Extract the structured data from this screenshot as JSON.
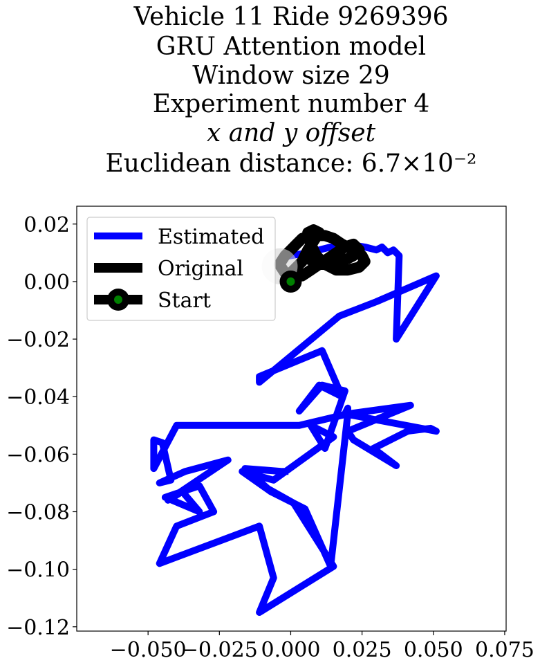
{
  "chart_data": {
    "type": "line",
    "title_lines": [
      "Vehicle 11 Ride 9269396",
      "GRU Attention model",
      "Window size 29",
      "Experiment number 4",
      "x and y offset",
      "Euclidean distance: 6.7×10⁻²"
    ],
    "xlim": [
      -0.075,
      0.0755
    ],
    "ylim": [
      -0.1215,
      0.0262
    ],
    "x_ticks": [
      -0.05,
      -0.025,
      0.0,
      0.025,
      0.05,
      0.075
    ],
    "x_tick_labels": [
      "−0.050",
      "−0.025",
      "0.000",
      "0.025",
      "0.050",
      "0.075"
    ],
    "y_ticks": [
      0.02,
      0.0,
      -0.02,
      -0.04,
      -0.06,
      -0.08,
      -0.1,
      -0.12
    ],
    "y_tick_labels": [
      "0.02",
      "0.00",
      "−0.02",
      "−0.04",
      "−0.06",
      "−0.08",
      "−0.10",
      "−0.12"
    ],
    "legend": {
      "position": "top-left",
      "entries": [
        "Estimated",
        "Original",
        "Start"
      ]
    },
    "colors": {
      "estimated": "#0000ff",
      "original": "#000000",
      "start_marker": "#008000",
      "start_shadow": "#d3d3d3"
    },
    "start": {
      "x": 0.0,
      "y": 0.0
    },
    "series": [
      {
        "name": "Estimated",
        "x": [
          0.0,
          0.006,
          0.014,
          0.02,
          0.026,
          0.03,
          0.032,
          0.034,
          0.036,
          0.038,
          0.037,
          0.051,
          0.03,
          0.017,
          -0.011,
          -0.011,
          0.011,
          0.018,
          0.01,
          0.003,
          0.011,
          0.019,
          0.012,
          0.007,
          0.015,
          -0.006,
          -0.017,
          -0.007,
          0.005,
          0.014,
          0.02,
          0.042,
          0.02,
          0.022,
          0.037,
          0.029,
          0.041,
          0.049,
          0.051,
          0.019,
          0.02,
          0.02,
          0.003,
          -0.04,
          -0.048,
          -0.048,
          -0.045,
          -0.042,
          -0.046,
          -0.037,
          -0.022,
          -0.043,
          -0.038,
          -0.032,
          -0.044,
          -0.032,
          -0.027,
          -0.04,
          -0.046,
          -0.011,
          -0.006,
          -0.011,
          0.015,
          0.001,
          -0.008,
          -0.016,
          -0.003,
          -0.002
        ],
        "y": [
          0.009,
          0.01,
          0.012,
          0.013,
          0.012,
          0.011,
          0.012,
          0.01,
          0.011,
          0.009,
          -0.02,
          0.002,
          -0.007,
          -0.012,
          -0.035,
          -0.033,
          -0.024,
          -0.04,
          -0.036,
          -0.045,
          -0.036,
          -0.038,
          -0.058,
          -0.05,
          -0.054,
          -0.069,
          -0.066,
          -0.073,
          -0.079,
          -0.099,
          -0.046,
          -0.043,
          -0.052,
          -0.055,
          -0.064,
          -0.058,
          -0.052,
          -0.051,
          -0.052,
          -0.046,
          -0.044,
          -0.046,
          -0.05,
          -0.05,
          -0.065,
          -0.055,
          -0.056,
          -0.069,
          -0.07,
          -0.066,
          -0.062,
          -0.076,
          -0.073,
          -0.08,
          -0.075,
          -0.071,
          -0.08,
          -0.085,
          -0.098,
          -0.085,
          -0.103,
          -0.115,
          -0.099,
          -0.077,
          -0.072,
          -0.065,
          -0.066,
          -0.066
        ]
      },
      {
        "name": "Original",
        "x": [
          0.0,
          0.004,
          0.006,
          0.008,
          0.01,
          0.008,
          0.006,
          0.007,
          0.009,
          0.012,
          0.016,
          0.02,
          0.024,
          0.026,
          0.025,
          0.022,
          0.018,
          0.015,
          0.012,
          0.009,
          0.007,
          0.004,
          0.002,
          0.0,
          -0.002,
          -0.004,
          -0.002,
          0.001,
          0.004,
          0.007,
          0.01,
          0.013,
          0.016,
          0.019,
          0.022,
          0.024,
          0.022,
          0.02,
          0.017,
          0.014,
          0.011,
          0.008,
          0.006,
          0.005
        ],
        "y": [
          0.003,
          0.007,
          0.011,
          0.014,
          0.017,
          0.018,
          0.017,
          0.013,
          0.009,
          0.006,
          0.004,
          0.004,
          0.005,
          0.007,
          0.009,
          0.011,
          0.013,
          0.015,
          0.016,
          0.016,
          0.016,
          0.015,
          0.013,
          0.011,
          0.009,
          0.006,
          0.003,
          0.002,
          0.002,
          0.004,
          0.006,
          0.008,
          0.01,
          0.012,
          0.013,
          0.011,
          0.009,
          0.008,
          0.007,
          0.006,
          0.006,
          0.007,
          0.008,
          0.009
        ]
      }
    ]
  }
}
